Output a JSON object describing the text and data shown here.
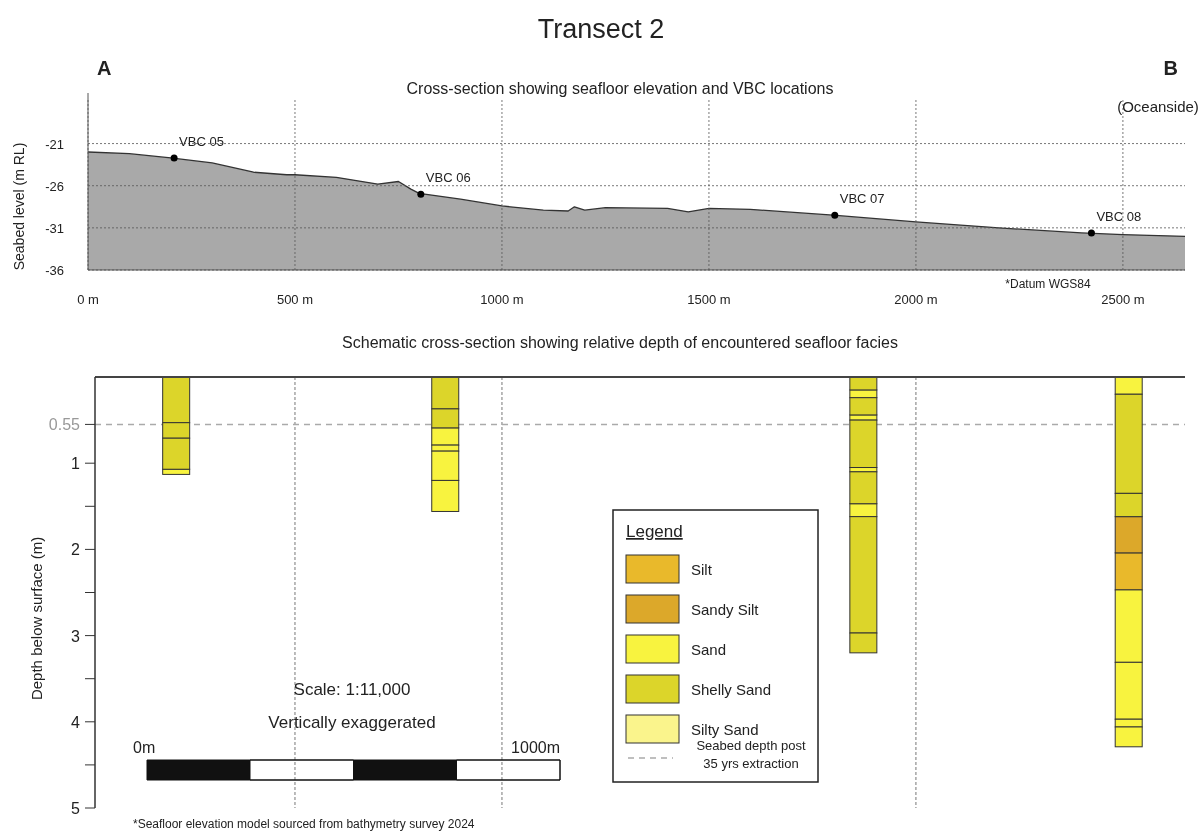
{
  "chart_data": [
    {
      "type": "area",
      "title": "Transect 2",
      "subtitle": "Cross-section showing seafloor elevation and VBC locations",
      "ylabel": "Seabed level (m RL)",
      "xlim": [
        0,
        2650
      ],
      "ylim": [
        -36,
        -15
      ],
      "xticks": [
        {
          "value": 0,
          "label": "0 m"
        },
        {
          "value": 500,
          "label": "500 m"
        },
        {
          "value": 1000,
          "label": "1000 m"
        },
        {
          "value": 1500,
          "label": "1500 m"
        },
        {
          "value": 2000,
          "label": "2000 m"
        },
        {
          "value": 2500,
          "label": "2500 m"
        }
      ],
      "yticks": [
        -21,
        -26,
        -31,
        -36
      ],
      "grid": true,
      "series": [
        {
          "type": "line",
          "color": "#333333",
          "x": [
            0,
            100,
            200,
            300,
            400,
            480,
            500,
            600,
            700,
            750,
            780,
            800,
            900,
            1000,
            1100,
            1160,
            1175,
            1200,
            1250,
            1400,
            1450,
            1500,
            1600,
            1800,
            2000,
            2200,
            2400,
            2500,
            2650
          ],
          "values": [
            -22.0,
            -22.2,
            -22.7,
            -23.3,
            -24.4,
            -24.7,
            -24.7,
            -25.0,
            -25.8,
            -25.5,
            -26.4,
            -26.9,
            -27.6,
            -28.4,
            -28.9,
            -29.0,
            -28.5,
            -28.9,
            -28.6,
            -28.7,
            -29.1,
            -28.7,
            -28.8,
            -29.5,
            -30.3,
            -31.0,
            -31.6,
            -31.8,
            -32.0
          ],
          "lower": [
            -36,
            -36,
            -36,
            -36,
            -36,
            -36,
            -36,
            -36,
            -36,
            -36,
            -36,
            -36,
            -36,
            -36,
            -36,
            -36,
            -36,
            -36,
            -36,
            -36,
            -36,
            -36,
            -36,
            -36,
            -36,
            -36,
            -36,
            -36,
            -36
          ],
          "upper": [
            -22.0,
            -22.2,
            -22.7,
            -23.3,
            -24.4,
            -24.7,
            -24.7,
            -25.0,
            -25.8,
            -25.5,
            -26.4,
            -26.9,
            -27.6,
            -28.4,
            -28.9,
            -29.0,
            -28.5,
            -28.9,
            -28.6,
            -28.7,
            -29.1,
            -28.7,
            -28.8,
            -29.5,
            -30.3,
            -31.0,
            -31.6,
            -31.8,
            -32.0
          ]
        },
        {
          "type": "scatter",
          "color": "#000000",
          "marker": "circle",
          "x": [
            208,
            804,
            1804,
            2424
          ],
          "values": [
            -22.7,
            -27.0,
            -29.5,
            -31.6
          ]
        }
      ],
      "annotations": [
        {
          "text": "VBC 05",
          "x": 208,
          "y": -22.7
        },
        {
          "text": "VBC 06",
          "x": 804,
          "y": -27.0
        },
        {
          "text": "VBC 07",
          "x": 1804,
          "y": -29.5
        },
        {
          "text": "VBC 08",
          "x": 2424,
          "y": -31.6
        },
        "A",
        "B",
        "(Oceanside)",
        "*Datum WGS84"
      ]
    },
    {
      "type": "bar",
      "title": "Schematic cross-section showing relative depth of encountered seafloor facies",
      "ylabel": "Depth below surface (m)",
      "xlim": [
        0,
        2650
      ],
      "ylim": [
        5,
        0
      ],
      "xticks": [
        500,
        1000,
        2000
      ],
      "yticks": [
        {
          "value": 0.55,
          "label": "0.55"
        },
        1,
        {
          "value": 1.5,
          "label": null
        },
        2,
        {
          "value": 2.5,
          "label": null
        },
        3,
        {
          "value": 3.5,
          "label": null
        },
        4,
        {
          "value": 4.5,
          "label": null
        },
        5
      ],
      "tick_labels": "y",
      "grid": "x",
      "legend": "bottom",
      "legend_title": "Legend",
      "series": [
        {
          "name": "Silt",
          "color": "#e9b92b",
          "x": [
            2514
          ],
          "base": [
            2.04
          ],
          "values": [
            0.43
          ]
        },
        {
          "name": "Sandy Silt",
          "color": "#dca82a",
          "x": [
            2514
          ],
          "base": [
            1.62
          ],
          "values": [
            0.42
          ]
        },
        {
          "name": "Sand",
          "color": "#f8f33f",
          "x": [
            213,
            863,
            1873,
            2514
          ],
          "base": [
            1.07,
            0.59,
            0.15,
            0
          ],
          "values": [
            0.06,
            0.2,
            0.09,
            0.2
          ]
        },
        {
          "color": "#f8f33f",
          "x": [
            863,
            1873,
            2514
          ],
          "base": [
            0.79,
            0.44,
            2.47
          ],
          "values": [
            0.07,
            0.06,
            0.84
          ]
        },
        {
          "color": "#f8f33f",
          "x": [
            863,
            1873,
            2514
          ],
          "base": [
            0.86,
            1.05,
            3.31
          ],
          "values": [
            0.34,
            0.05,
            0.66
          ]
        },
        {
          "color": "#f8f33f",
          "x": [
            863,
            1873,
            2514
          ],
          "base": [
            1.2,
            1.47,
            3.97
          ],
          "values": [
            0.36,
            0.15,
            0.09
          ]
        },
        {
          "color": "#f8f33f",
          "x": [
            2514
          ],
          "base": [
            4.06
          ],
          "values": [
            0.23
          ]
        },
        {
          "name": "Shelly Sand",
          "color": "#dcd52a",
          "x": [
            213,
            863,
            1873,
            2514
          ],
          "base": [
            0,
            0,
            0,
            0.2
          ],
          "values": [
            0.53,
            0.37,
            0.15,
            1.15
          ]
        },
        {
          "color": "#dcd52a",
          "x": [
            213,
            863,
            1873,
            2514
          ],
          "base": [
            0.53,
            0.37,
            0.24,
            1.35
          ],
          "values": [
            0.18,
            0.22,
            0.2,
            0.27
          ]
        },
        {
          "color": "#dcd52a",
          "x": [
            213,
            1873
          ],
          "base": [
            0.71,
            0.5
          ],
          "values": [
            0.36,
            0.55
          ]
        },
        {
          "color": "#dcd52a",
          "x": [
            1873
          ],
          "base": [
            1.1
          ],
          "values": [
            0.37
          ]
        },
        {
          "color": "#dcd52a",
          "x": [
            1873
          ],
          "base": [
            1.62
          ],
          "values": [
            1.35
          ]
        },
        {
          "color": "#dcd52a",
          "x": [
            1873
          ],
          "base": [
            2.97
          ],
          "values": [
            0.23
          ]
        },
        {
          "name": "Silty Sand",
          "color": "#faf48c"
        }
      ],
      "ref_lines": [
        {
          "axis": "y",
          "value": 0.55,
          "label": "Seabed depth post 35 yrs extraction",
          "color": "#aaaaaa",
          "line_style": "dashed"
        }
      ],
      "annotations": [
        "Scale: 1:11,000",
        "Vertically exaggerated",
        "0m",
        "1000m",
        "*Seafloor elevation model sourced from bathymetry survey 2024"
      ]
    }
  ]
}
